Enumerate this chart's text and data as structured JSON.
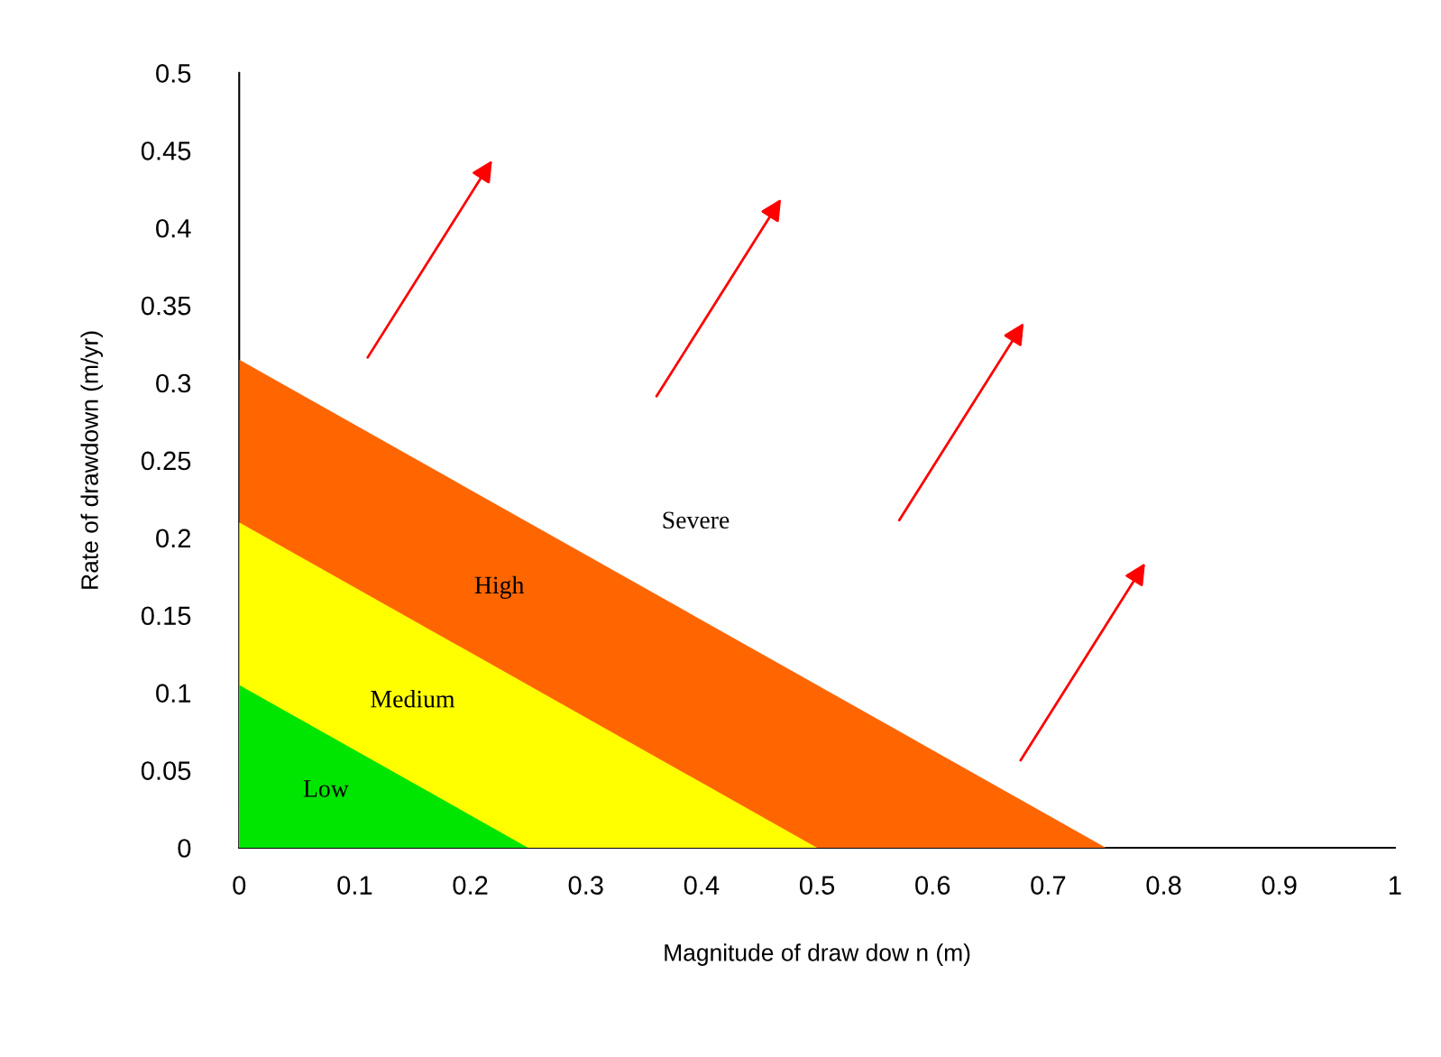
{
  "chart_data": {
    "type": "area",
    "xlabel": "Magnitude of draw dow n (m)",
    "ylabel": "Rate of drawdown (m/yr)",
    "series": [
      {
        "name": "Low",
        "x": [
          0,
          0.25
        ],
        "values": [
          0.105,
          0
        ],
        "color": "#00e600"
      },
      {
        "name": "Medium",
        "x": [
          0,
          0.25,
          0.5
        ],
        "values": [
          0.21,
          0.105,
          0
        ],
        "color": "#ffff00"
      },
      {
        "name": "High",
        "x": [
          0,
          0.5,
          0.75
        ],
        "values": [
          0.315,
          0.105,
          0
        ],
        "color": "#ff6600"
      }
    ],
    "annotations": [
      "Severe"
    ],
    "xlim": [
      0,
      1
    ],
    "ylim": [
      0,
      0.5
    ],
    "xticks": [
      0,
      0.1,
      0.2,
      0.3,
      0.4,
      0.5,
      0.6,
      0.7,
      0.8,
      0.9,
      1
    ],
    "yticks": [
      0,
      0.05,
      0.1,
      0.15,
      0.2,
      0.25,
      0.3,
      0.35,
      0.4,
      0.45,
      0.5
    ],
    "grid": false,
    "legend": false
  }
}
